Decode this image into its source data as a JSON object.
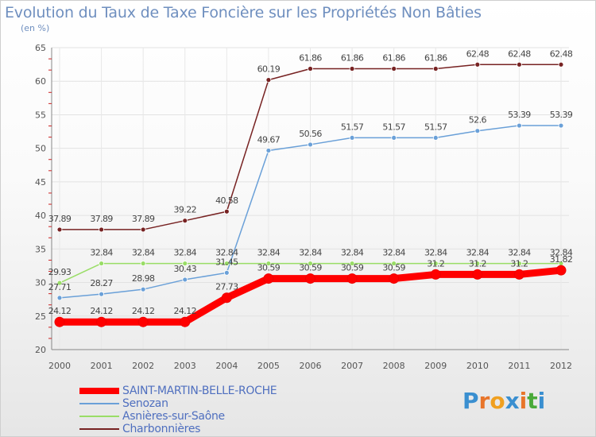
{
  "chart_data": {
    "type": "line",
    "title": "Evolution du Taux de Taxe Foncière sur les Propriétés Non Bâties",
    "ylabel": "(en %)",
    "xlabel": "",
    "ylim": [
      20,
      65
    ],
    "yticks": [
      20,
      25,
      30,
      35,
      40,
      45,
      50,
      55,
      60,
      65
    ],
    "categories": [
      "2000",
      "2001",
      "2002",
      "2003",
      "2004",
      "2005",
      "2006",
      "2007",
      "2008",
      "2009",
      "2010",
      "2011",
      "2012"
    ],
    "series": [
      {
        "name": "SAINT-MARTIN-BELLE-ROCHE",
        "color": "#ff0000",
        "values": [
          24.12,
          24.12,
          24.12,
          24.12,
          27.73,
          30.59,
          30.59,
          30.59,
          30.59,
          31.2,
          31.2,
          31.2,
          31.82
        ],
        "labels": [
          "24.12",
          "24.12",
          "24.12",
          "24.12",
          "27.73",
          "30.59",
          "30.59",
          "30.59",
          "30.59",
          "31.2",
          "31.2",
          "31.2",
          "31.82"
        ]
      },
      {
        "name": "Senozan",
        "color": "#6aa0d8",
        "values": [
          27.71,
          28.27,
          28.98,
          30.43,
          31.45,
          49.67,
          50.56,
          51.57,
          51.57,
          51.57,
          52.6,
          53.39,
          53.39
        ],
        "labels": [
          "27.71",
          "28.27",
          "28.98",
          "30.43",
          "31.45",
          "49.67",
          "50.56",
          "51.57",
          "51.57",
          "51.57",
          "52.6",
          "53.39",
          "53.39"
        ]
      },
      {
        "name": "Asnières-sur-Saône",
        "color": "#99dd66",
        "values": [
          29.93,
          32.84,
          32.84,
          32.84,
          32.84,
          32.84,
          32.84,
          32.84,
          32.84,
          32.84,
          32.84,
          32.84,
          32.84
        ],
        "labels": [
          "29.93",
          "32.84",
          "32.84",
          "32.84",
          "32.84",
          "32.84",
          "32.84",
          "32.84",
          "32.84",
          "32.84",
          "32.84",
          "32.84",
          "32.84"
        ]
      },
      {
        "name": "Charbonnières",
        "color": "#772222",
        "values": [
          37.89,
          37.89,
          37.89,
          39.22,
          40.58,
          60.19,
          61.86,
          61.86,
          61.86,
          61.86,
          62.48,
          62.48,
          62.48
        ],
        "labels": [
          "37.89",
          "37.89",
          "37.89",
          "39.22",
          "40.58",
          "60.19",
          "61.86",
          "61.86",
          "61.86",
          "61.86",
          "62.48",
          "62.48",
          "62.48"
        ]
      }
    ],
    "legend_position": "bottom-left"
  },
  "branding": {
    "logo_letters": [
      "P",
      "r",
      "o",
      "x",
      "i",
      "t",
      "i"
    ],
    "logo_colors": [
      "#3a8fd0",
      "#e8752a",
      "#f0a020",
      "#3a8fd0",
      "#e8752a",
      "#4aaa3a",
      "#3a8fd0"
    ]
  }
}
